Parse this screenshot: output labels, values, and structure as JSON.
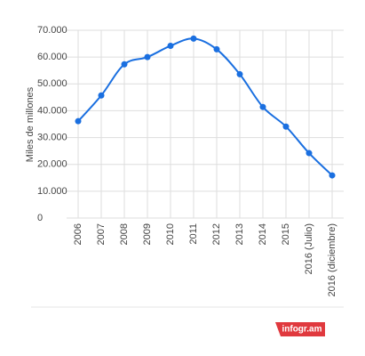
{
  "chart_data": {
    "type": "line",
    "y_label": "Miles de millones",
    "categories": [
      "2006",
      "2007",
      "2008",
      "2009",
      "2010",
      "2011",
      "2012",
      "2013",
      "2014",
      "2015",
      "2016 (Julio)",
      "2016 (diciembre)"
    ],
    "series": [
      {
        "name": "Miles de millones",
        "color": "#1a6fe0",
        "values": [
          36100,
          45700,
          57300,
          60000,
          64200,
          66900,
          62900,
          53600,
          41400,
          34100,
          24200,
          15900
        ]
      }
    ],
    "ylim": [
      0,
      70000
    ],
    "yticks": [
      0,
      {
        "value": 10000,
        "label": "10.000"
      },
      {
        "value": 20000,
        "label": "20.000"
      },
      {
        "value": 30000,
        "label": "30.000"
      },
      {
        "value": 40000,
        "label": "40.000"
      },
      {
        "value": 50000,
        "label": "50.000"
      },
      {
        "value": 60000,
        "label": "60.000"
      },
      {
        "value": 70000,
        "label": "70.000"
      }
    ],
    "grid": true
  },
  "credit": "infogr.am"
}
